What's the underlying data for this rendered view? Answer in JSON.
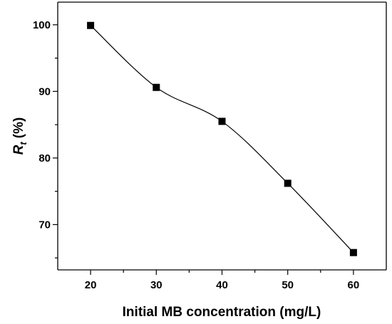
{
  "chart_data": {
    "type": "line",
    "xlabel": "Initial MB concentration (mg/L)",
    "ylabel_main": "R",
    "ylabel_sub": "t",
    "ylabel_unit": "(%)",
    "x": [
      20,
      30,
      40,
      50,
      60
    ],
    "values": [
      99.9,
      90.6,
      85.5,
      76.2,
      65.8
    ],
    "xlim": [
      15,
      65
    ],
    "ylim": [
      63.2,
      103.4
    ],
    "xticks": [
      20,
      30,
      40,
      50,
      60
    ],
    "yticks": [
      70,
      80,
      90,
      100
    ],
    "x_minor_ticks": [
      25,
      35,
      45,
      55
    ],
    "y_minor_ticks": [
      65,
      75,
      85,
      95
    ],
    "marker": "square",
    "line_style": "smooth",
    "grid": false,
    "series_color": "#000000"
  }
}
